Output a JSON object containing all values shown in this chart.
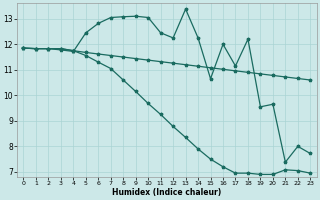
{
  "xlabel": "Humidex (Indice chaleur)",
  "bg_color": "#cce8e8",
  "grid_color": "#aad4d4",
  "line_color": "#1a6b60",
  "xlim": [
    -0.5,
    23.5
  ],
  "ylim": [
    6.8,
    13.6
  ],
  "xticks": [
    0,
    1,
    2,
    3,
    4,
    5,
    6,
    7,
    8,
    9,
    10,
    11,
    12,
    13,
    14,
    15,
    16,
    17,
    18,
    19,
    20,
    21,
    22,
    23
  ],
  "yticks": [
    7,
    8,
    9,
    10,
    11,
    12,
    13
  ],
  "line1_x": [
    0,
    1,
    2,
    3,
    4,
    5,
    6,
    7,
    8,
    9,
    10,
    11,
    12,
    13,
    14,
    15,
    16,
    17,
    18,
    19,
    20,
    21,
    22,
    23
  ],
  "line1_y": [
    11.85,
    11.83,
    11.83,
    11.83,
    11.75,
    11.68,
    11.62,
    11.56,
    11.5,
    11.44,
    11.38,
    11.32,
    11.26,
    11.2,
    11.14,
    11.08,
    11.02,
    10.96,
    10.9,
    10.84,
    10.78,
    10.72,
    10.66,
    10.6
  ],
  "line2_x": [
    0,
    1,
    2,
    3,
    4,
    5,
    6,
    7,
    8,
    9,
    10,
    11,
    12,
    13,
    14,
    15,
    16,
    17,
    18,
    19,
    20,
    21,
    22,
    23
  ],
  "line2_y": [
    11.85,
    11.83,
    11.83,
    11.83,
    11.75,
    11.56,
    11.3,
    11.05,
    10.6,
    10.15,
    9.68,
    9.25,
    8.78,
    8.35,
    7.9,
    7.5,
    7.2,
    6.95,
    6.95,
    6.9,
    6.9,
    7.08,
    7.05,
    6.95
  ],
  "line3_x": [
    0,
    1,
    2,
    3,
    4,
    5,
    6,
    7,
    8,
    9,
    10,
    11,
    12,
    13,
    14,
    15,
    16,
    17,
    18,
    19,
    20,
    21,
    22,
    23
  ],
  "line3_y": [
    11.85,
    11.83,
    11.83,
    11.78,
    11.72,
    12.45,
    12.82,
    13.05,
    13.08,
    13.1,
    13.05,
    12.45,
    12.25,
    13.38,
    12.25,
    10.65,
    12.0,
    11.15,
    12.2,
    9.55,
    9.65,
    7.38,
    8.0,
    7.72
  ]
}
